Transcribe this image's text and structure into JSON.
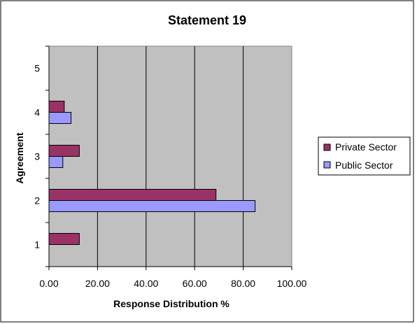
{
  "chart_data": {
    "type": "bar",
    "orientation": "horizontal",
    "title": "Statement 19",
    "xlabel": "Response Distribution %",
    "ylabel": "Agreement",
    "categories": [
      "1",
      "2",
      "3",
      "4",
      "5"
    ],
    "xlim": [
      0,
      100
    ],
    "x_ticks": [
      "0.00",
      "20.00",
      "40.00",
      "60.00",
      "80.00",
      "100.00"
    ],
    "grid": true,
    "legend_position": "right",
    "series": [
      {
        "name": "Private Sector",
        "color": "#993366",
        "values": [
          12.5,
          68.8,
          12.5,
          6.3,
          0
        ]
      },
      {
        "name": "Public Sector",
        "color": "#9999FF",
        "values": [
          0,
          84.9,
          5.7,
          9.1,
          0
        ]
      }
    ],
    "colors": {
      "plot_background": "#C0C0C0",
      "gridline": "#000000",
      "border": "#000000"
    }
  }
}
